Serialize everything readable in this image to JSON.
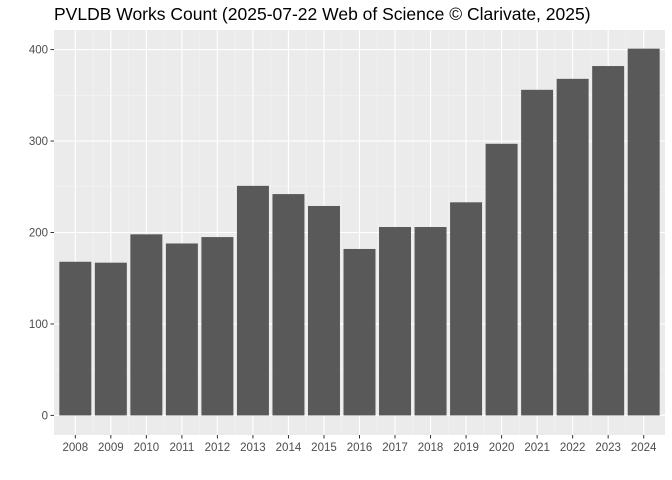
{
  "chart_data": {
    "type": "bar",
    "title": "PVLDB Works Count (2025-07-22 Web of Science © Clarivate, 2025)",
    "xlabel": "",
    "ylabel": "",
    "categories": [
      "2008",
      "2009",
      "2010",
      "2011",
      "2012",
      "2013",
      "2014",
      "2015",
      "2016",
      "2017",
      "2018",
      "2019",
      "2020",
      "2021",
      "2022",
      "2023",
      "2024"
    ],
    "values": [
      168,
      167,
      198,
      188,
      195,
      251,
      242,
      229,
      182,
      206,
      206,
      233,
      297,
      356,
      368,
      382,
      401
    ],
    "yticks": [
      0,
      100,
      200,
      300,
      400
    ],
    "ylim": [
      -21.4,
      421.4
    ],
    "grid": true,
    "legend": "none",
    "colors": {
      "bar": "#595959",
      "panel_background": "#ebebeb",
      "grid_major": "#ffffff",
      "grid_minor": "#f5f5f5",
      "tick_text": "#4d4d4d",
      "tick_mark": "#333333"
    }
  }
}
